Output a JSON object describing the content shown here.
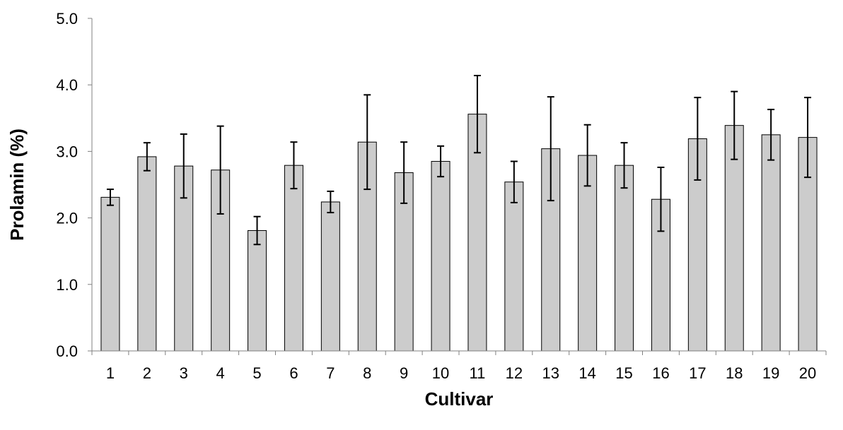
{
  "chart_data": {
    "type": "bar",
    "title": "",
    "xlabel": "Cultivar",
    "ylabel": "Prolamin (%)",
    "ylim": [
      0,
      5
    ],
    "yticks": [
      "0.0",
      "1.0",
      "2.0",
      "3.0",
      "4.0",
      "5.0"
    ],
    "grid": false,
    "legend": "none",
    "categories": [
      "1",
      "2",
      "3",
      "4",
      "5",
      "6",
      "7",
      "8",
      "9",
      "10",
      "11",
      "12",
      "13",
      "14",
      "15",
      "16",
      "17",
      "18",
      "19",
      "20"
    ],
    "values": [
      2.31,
      2.92,
      2.78,
      2.72,
      1.81,
      2.79,
      2.24,
      3.14,
      2.68,
      2.85,
      3.56,
      2.54,
      3.04,
      2.94,
      2.79,
      2.28,
      3.19,
      3.39,
      3.25,
      3.21
    ],
    "errors": [
      0.12,
      0.21,
      0.48,
      0.66,
      0.21,
      0.35,
      0.16,
      0.71,
      0.46,
      0.23,
      0.58,
      0.31,
      0.78,
      0.46,
      0.34,
      0.48,
      0.62,
      0.51,
      0.38,
      0.6
    ],
    "colors": {
      "bar_fill": "#cccccc",
      "bar_stroke": "#000000",
      "axis": "#808080",
      "error_bar": "#000000"
    }
  }
}
